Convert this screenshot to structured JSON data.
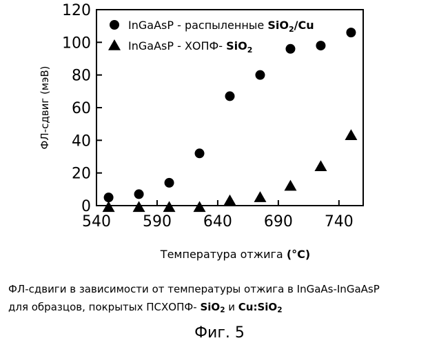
{
  "chart_data": {
    "type": "scatter",
    "xlabel": "Температура отжига",
    "xlabel_unit": "(°C)",
    "ylabel": "ФЛ-сдвиг (мэВ)",
    "xlim": [
      540,
      760
    ],
    "ylim": [
      0,
      120
    ],
    "x_ticks": [
      540,
      590,
      640,
      690,
      740
    ],
    "y_ticks": [
      0,
      20,
      40,
      60,
      80,
      100,
      120
    ],
    "legend_position": "top",
    "series": [
      {
        "name": "InGaAsP - распыленные SiO2/Cu",
        "name_plain": "InGaAsP - распыленные ",
        "name_bold": "SiO",
        "name_sub": "2",
        "name_tail": "/Cu",
        "marker": "circle",
        "x": [
          550,
          575,
          600,
          625,
          650,
          675,
          700,
          725,
          750
        ],
        "y": [
          5,
          7,
          14,
          32,
          67,
          80,
          96,
          98,
          106
        ]
      },
      {
        "name": "InGaAsP - ХОПФ- SiO2",
        "name_plain": "InGaAsP - ХОПФ- ",
        "name_bold": "SiO",
        "name_sub": "2",
        "name_tail": "",
        "marker": "triangle",
        "x": [
          550,
          575,
          600,
          625,
          650,
          675,
          700,
          725,
          750
        ],
        "y": [
          -1,
          -1,
          -1,
          -1,
          3,
          5,
          12,
          24,
          43
        ]
      }
    ]
  },
  "caption": {
    "line1": "ФЛ-сдвиги в зависимости от температуры отжига в InGaAs-InGaAsP",
    "line2_plain": "для образцов, покрытых ПСХОПФ- ",
    "line2_b1": "SiO",
    "line2_b1_sub": "2",
    "line2_and": " и ",
    "line2_b2": "Cu:SiO",
    "line2_b2_sub": "2"
  },
  "figure_label": "Фиг. 5"
}
